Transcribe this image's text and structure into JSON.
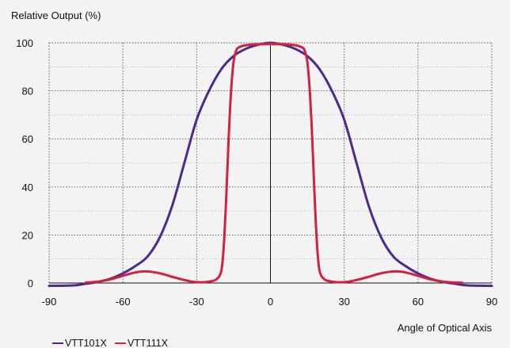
{
  "chart_data": {
    "type": "line",
    "ylabel": "Relative Output (%)",
    "xlabel": "Angle of Optical Axis",
    "xlim": [
      -90,
      90
    ],
    "ylim": [
      0,
      100
    ],
    "x_ticks": [
      -90,
      -60,
      -30,
      0,
      30,
      60,
      90
    ],
    "y_ticks": [
      0,
      20,
      40,
      60,
      80,
      100
    ],
    "grid": true,
    "legend_position": "bottom-left",
    "series": [
      {
        "name": "VTT101X",
        "color": "#4b2a8c",
        "x": [
          -90,
          -80,
          -75,
          -70,
          -65,
          -60,
          -55,
          -50,
          -45,
          -40,
          -35,
          -30,
          -25,
          -20,
          -15,
          -10,
          -5,
          0,
          5,
          10,
          15,
          20,
          25,
          30,
          35,
          40,
          45,
          50,
          55,
          60,
          65,
          70,
          75,
          80,
          90
        ],
        "y": [
          -1.2,
          -1,
          -0.3,
          0.5,
          1.8,
          4,
          7,
          11,
          19,
          32,
          50,
          68,
          80,
          89,
          94.5,
          97.5,
          99.2,
          100,
          99.2,
          97.5,
          94.5,
          89,
          80,
          68,
          50,
          32,
          19,
          11,
          7,
          4,
          1.8,
          0.5,
          -0.3,
          -1,
          -1.2
        ]
      },
      {
        "name": "VTT111X",
        "color": "#d4213d",
        "x": [
          -75,
          -70,
          -65,
          -60,
          -55,
          -52,
          -48,
          -44,
          -40,
          -36,
          -32,
          -28,
          -25,
          -22,
          -20,
          -19,
          -18,
          -17,
          -16,
          -15,
          -14,
          -13,
          -10,
          -5,
          0,
          5,
          10,
          13,
          14,
          15,
          16,
          17,
          18,
          19,
          20,
          22,
          25,
          28,
          32,
          36,
          40,
          44,
          48,
          52,
          55,
          60,
          65,
          70,
          75,
          78
        ],
        "y": [
          0.2,
          0.6,
          1.5,
          3,
          4.4,
          4.8,
          4.6,
          3.8,
          2.6,
          1.5,
          0.6,
          0.3,
          0.6,
          1.5,
          5,
          15,
          35,
          60,
          80,
          92,
          96.5,
          98,
          99,
          99.4,
          99.5,
          99.4,
          99,
          98,
          96.5,
          92,
          80,
          60,
          35,
          15,
          5,
          1.5,
          0.6,
          0.3,
          0.6,
          1.5,
          2.6,
          3.8,
          4.6,
          4.8,
          4.4,
          3,
          1.5,
          0.6,
          0.2,
          0.1
        ]
      }
    ]
  }
}
